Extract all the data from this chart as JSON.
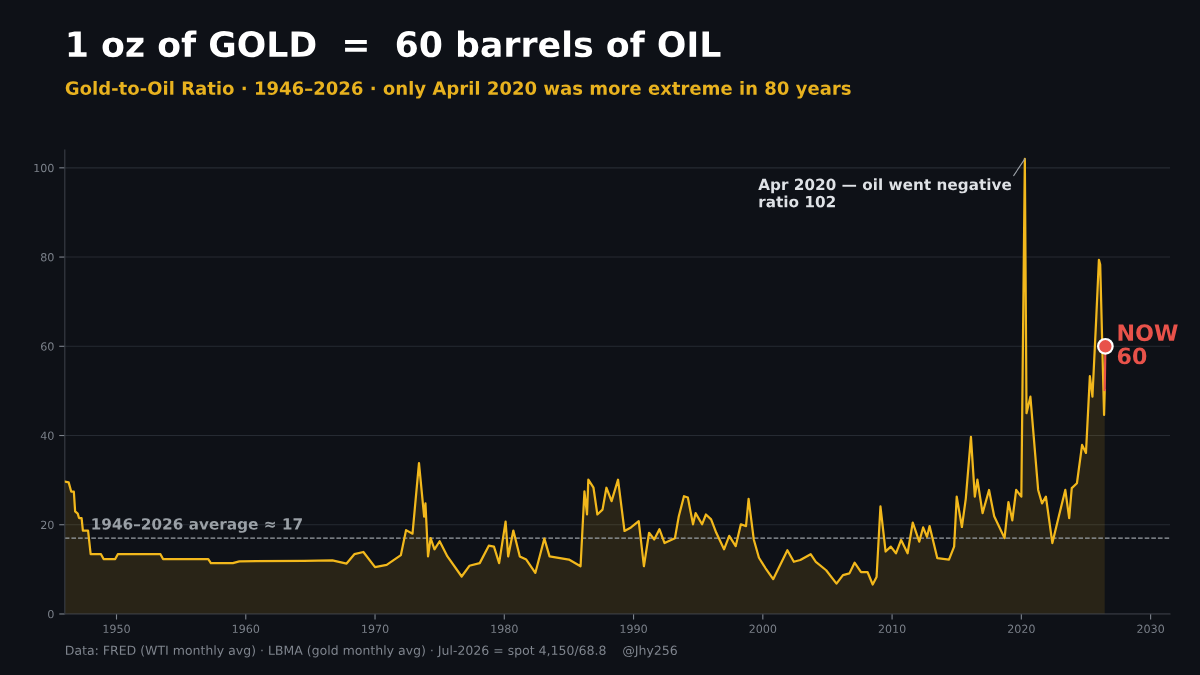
{
  "chart_data": {
    "type": "area",
    "title": "1 oz of GOLD  =  60 barrels of OIL",
    "subtitle": "Gold-to-Oil Ratio · 1946–2026 · only April 2020 was more extreme in 80 years",
    "series": [
      {
        "color": "#f2b81c",
        "line_style": "solid",
        "marker": "none",
        "x": [
          1946.0,
          1946.3,
          1946.5,
          1946.7,
          1946.8,
          1947.0,
          1947.1,
          1947.3,
          1947.4,
          1947.8,
          1948.0,
          1948.8,
          1949.0,
          1949.9,
          1950.1,
          1953.4,
          1953.6,
          1957.1,
          1957.3,
          1959.0,
          1959.5,
          1964.5,
          1966.7,
          1967.8,
          1968.4,
          1969.1,
          1970.0,
          1970.9,
          1972.0,
          1972.4,
          1972.9,
          1973.4,
          1973.8,
          1973.9,
          1974.1,
          1974.3,
          1974.6,
          1975.0,
          1975.6,
          1976.7,
          1977.3,
          1978.1,
          1978.8,
          1979.2,
          1979.6,
          1980.1,
          1980.3,
          1980.7,
          1981.2,
          1981.7,
          1982.4,
          1983.1,
          1983.5,
          1985.0,
          1985.9,
          1986.2,
          1986.4,
          1986.5,
          1986.9,
          1987.2,
          1987.6,
          1987.9,
          1988.3,
          1988.8,
          1989.3,
          1989.8,
          1990.4,
          1990.8,
          1991.2,
          1991.6,
          1992.0,
          1992.4,
          1993.2,
          1993.5,
          1993.9,
          1994.2,
          1994.6,
          1994.8,
          1995.3,
          1995.6,
          1996.0,
          1996.4,
          1997.0,
          1997.4,
          1997.9,
          1998.3,
          1998.7,
          1998.9,
          1999.3,
          1999.7,
          2000.2,
          2000.8,
          2001.9,
          2002.4,
          2002.9,
          2003.7,
          2004.1,
          2004.9,
          2005.7,
          2006.2,
          2006.7,
          2007.1,
          2007.6,
          2008.1,
          2008.5,
          2008.8,
          2009.1,
          2009.5,
          2009.9,
          2010.3,
          2010.7,
          2011.2,
          2011.6,
          2012.1,
          2012.4,
          2012.7,
          2012.9,
          2013.5,
          2014.4,
          2014.8,
          2015.0,
          2015.4,
          2015.7,
          2016.1,
          2016.4,
          2016.6,
          2017.0,
          2017.5,
          2017.9,
          2018.7,
          2019.0,
          2019.3,
          2019.6,
          2020.0,
          2020.27,
          2020.4,
          2020.7,
          2021.3,
          2021.6,
          2021.9,
          2022.4,
          2022.9,
          2023.4,
          2023.7,
          2023.9,
          2024.3,
          2024.7,
          2025.0,
          2025.3,
          2025.5,
          2025.8,
          2026.0,
          2026.1,
          2026.4,
          2026.45
        ],
        "values": [
          29.7,
          29.5,
          27.4,
          27.4,
          23,
          22.5,
          21.5,
          21.5,
          18.7,
          18.7,
          13.4,
          13.4,
          12.3,
          12.3,
          13.4,
          13.4,
          12.3,
          12.3,
          11.4,
          11.4,
          11.8,
          11.9,
          12.0,
          11.3,
          13.4,
          13.9,
          10.5,
          11.0,
          13.2,
          18.8,
          18.0,
          33.8,
          21.8,
          24.8,
          12.9,
          17.0,
          14.5,
          16.3,
          12.9,
          8.4,
          10.8,
          11.4,
          15.3,
          15.1,
          11.4,
          20.7,
          12.9,
          18.7,
          12.9,
          12.2,
          9.2,
          16.9,
          12.9,
          12.2,
          10.7,
          27.5,
          22.3,
          30.1,
          28.3,
          22.3,
          23.4,
          28.3,
          25.3,
          30.1,
          18.6,
          19.4,
          20.8,
          10.7,
          18.2,
          16.7,
          19.0,
          15.9,
          17.0,
          21.9,
          26.4,
          26.1,
          20.1,
          22.6,
          20.1,
          22.3,
          21.2,
          18.2,
          14.5,
          17.5,
          15.2,
          20.1,
          19.7,
          25.8,
          16.7,
          12.6,
          10.3,
          7.8,
          14.3,
          11.7,
          12.1,
          13.4,
          11.7,
          9.8,
          6.8,
          8.7,
          9.1,
          11.5,
          9.4,
          9.4,
          6.6,
          8.3,
          24.1,
          14.0,
          15.1,
          13.6,
          16.6,
          13.6,
          20.5,
          16.2,
          19.4,
          17.3,
          19.7,
          12.5,
          12.2,
          15.1,
          26.3,
          19.5,
          25.8,
          39.7,
          26.3,
          30.1,
          22.6,
          27.8,
          21.9,
          17.0,
          25.1,
          21.0,
          27.8,
          26.3,
          102,
          45.0,
          48.7,
          27.8,
          24.8,
          26.3,
          15.9,
          21.9,
          27.8,
          21.5,
          28.2,
          29.3,
          37.9,
          36.1,
          53.3,
          48.7,
          66.7,
          79.4,
          78.3,
          44.6,
          50.2
        ]
      },
      {
        "type": "line",
        "color": "#e8524a",
        "line_style": "solid",
        "marker": "none",
        "x": [
          2026.45,
          2026.5
        ],
        "values": [
          50.2,
          60
        ]
      },
      {
        "type": "scatter",
        "color": "#e8524a",
        "marker": "circle",
        "x": [
          2026.5
        ],
        "values": [
          60
        ]
      }
    ],
    "xlim": [
      1946,
      2031.5
    ],
    "xticks": [
      1950,
      1960,
      1970,
      1980,
      1990,
      2000,
      2010,
      2020,
      2030
    ],
    "ylim": [
      0,
      104
    ],
    "yticks": [
      0,
      20,
      40,
      60,
      80,
      100
    ],
    "grid": "y",
    "legend": false,
    "ref_lines": [
      {
        "axis": "y",
        "value": 17,
        "label": "1946–2026 average ≈ 17",
        "color": "#9aa0a6",
        "line_style": "dashed"
      }
    ],
    "annotations": [
      {
        "text": "Apr 2020 — oil went negative\nratio 102",
        "x": 2020.27,
        "y": 102
      },
      {
        "text": "NOW\n60",
        "x": 2026.5,
        "y": 60
      },
      "Data: FRED (WTI monthly avg) · LBMA (gold monthly avg) · Jul-2026 = spot 4,150/68.8    @Jhy256"
    ]
  }
}
